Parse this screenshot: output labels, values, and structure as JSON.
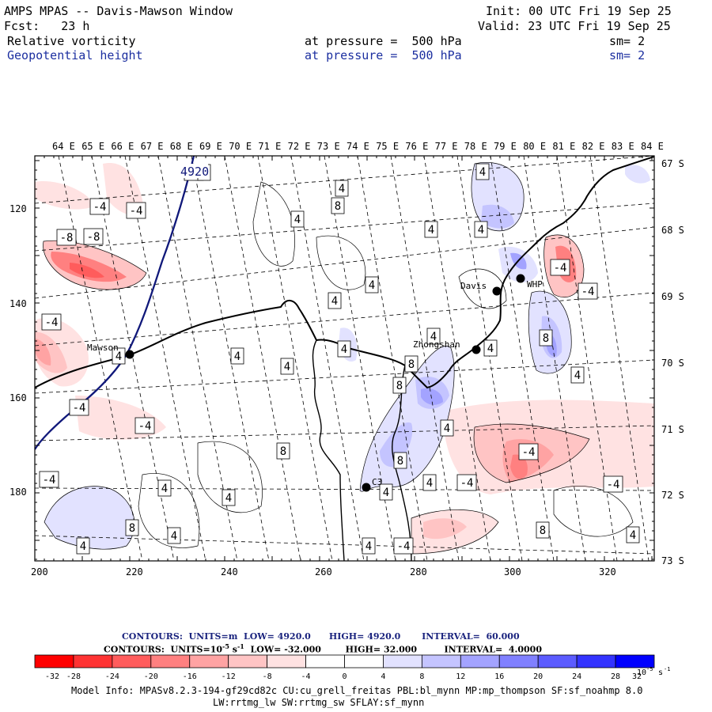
{
  "header": {
    "title": "AMPS MPAS -- Davis-Mawson Window",
    "init": "Init: 00 UTC Fri 19 Sep 25",
    "fcst": "Fcst:   23 h",
    "valid": "Valid: 23 UTC Fri 19 Sep 25",
    "field1": "Relative vorticity",
    "field1_level": "at pressure =  500 hPa",
    "field1_sm": "sm= 2",
    "field2": "Geopotential height",
    "field2_level": "at pressure =  500 hPa",
    "field2_sm": "sm= 2"
  },
  "map": {
    "lon_labels": [
      "64 E",
      "65 E",
      "66 E",
      "67 E",
      "68 E",
      "69 E",
      "70 E",
      "71 E",
      "72 E",
      "73 E",
      "74 E",
      "75 E",
      "76 E",
      "77 E",
      "78 E",
      "79 E",
      "80 E",
      "81 E",
      "82 E",
      "83 E",
      "84 E"
    ],
    "lat_labels": [
      "67 S",
      "68 S",
      "69 S",
      "70 S",
      "71 S",
      "72 S",
      "73 S"
    ],
    "y_ticks": [
      "120",
      "140",
      "160",
      "180"
    ],
    "x_ticks": [
      "200",
      "220",
      "240",
      "260",
      "280",
      "300",
      "320"
    ],
    "stations": [
      {
        "name": "Mawson"
      },
      {
        "name": "Davis"
      },
      {
        "name": "WHP"
      },
      {
        "name": "Zhongshan"
      },
      {
        "name": "C3"
      }
    ],
    "height_contour_label": "4920",
    "vort_labels": [
      "-4",
      "-4",
      "-8",
      "-8",
      "-4",
      "-4",
      "-4",
      "-4",
      "-4",
      "-4",
      "-4",
      "-4",
      "-4",
      "-4",
      "-4",
      "4",
      "8",
      "4",
      "4",
      "4",
      "4",
      "4",
      "4",
      "4",
      "8",
      "8",
      "4",
      "4",
      "4",
      "8",
      "8",
      "8",
      "4",
      "4",
      "4",
      "4",
      "4",
      "4",
      "8",
      "4",
      "4",
      "4",
      "8",
      "4",
      "4",
      "4",
      "4"
    ]
  },
  "contours_info": {
    "line1_prefix": "CONTOURS:  UNITS=m  LOW=",
    "line1_low": "4920.0",
    "line1_high_label": "HIGH=",
    "line1_high": "4920.0",
    "line1_int_label": "INTERVAL=",
    "line1_int": "60.000",
    "line2_prefix": "CONTOURS:  UNITS=10",
    "line2_exp": "-5",
    "line2_unit": "s",
    "line2_unit_exp": "-1",
    "line2_low_label": "LOW=",
    "line2_low": "-32.000",
    "line2_high_label": "HIGH=",
    "line2_high": "32.000",
    "line2_int_label": "INTERVAL=",
    "line2_int": "4.0000"
  },
  "colorbar": {
    "colors": [
      "#ff0000",
      "#ff3333",
      "#ff5c5c",
      "#ff8080",
      "#ffa3a3",
      "#ffc4c4",
      "#ffe2e2",
      "#ffffff",
      "#ffffff",
      "#e2e2ff",
      "#c4c4ff",
      "#a3a3ff",
      "#8080ff",
      "#5c5cff",
      "#3333ff",
      "#0000ff"
    ],
    "ticks": [
      "-32",
      "-28",
      "-24",
      "-20",
      "-16",
      "-12",
      "-8",
      "-4",
      "0",
      "4",
      "8",
      "12",
      "16",
      "20",
      "24",
      "28",
      "32"
    ],
    "unit": "10",
    "unit_exp": "-5",
    "unit_s": "s",
    "unit_s_exp": "-1"
  },
  "footer": {
    "line1": "Model Info: MPASv8.2.3-194-gf29cd82c CU:cu_grell_freitas PBL:bl_mynn MP:mp_thompson SF:sf_noahmp 8.0",
    "line2": "LW:rrtmg_lw SW:rrtmg_sw SFLAY:sf_mynn"
  }
}
